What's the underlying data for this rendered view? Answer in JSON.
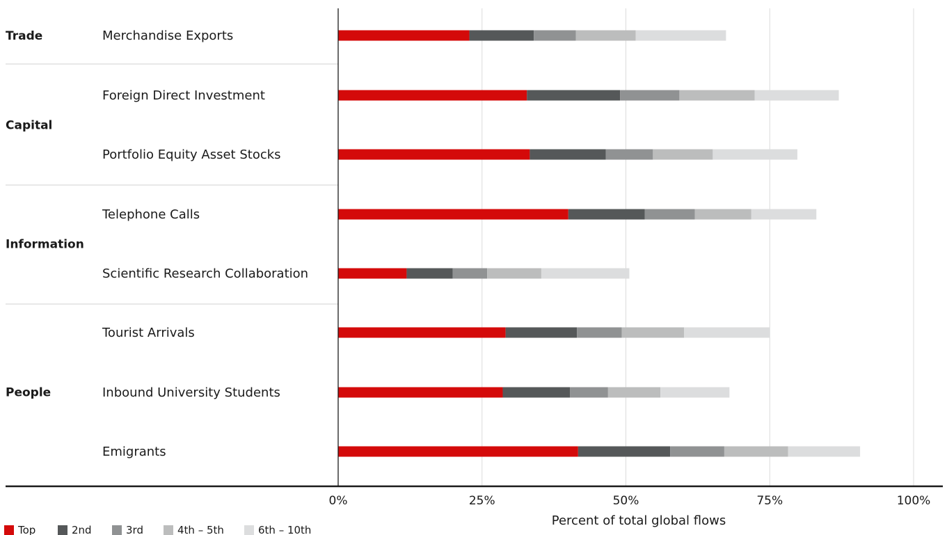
{
  "chart_data": {
    "type": "bar",
    "orientation": "horizontal",
    "stacked": true,
    "xlabel": "Percent of total global flows",
    "xlim": [
      0,
      100
    ],
    "x_ticks": [
      0,
      25,
      50,
      75,
      100
    ],
    "x_tick_labels": [
      "0%",
      "25%",
      "50%",
      "75%",
      "100%"
    ],
    "grid": true,
    "legend_position": "bottom-left",
    "groups": [
      {
        "name": "Trade",
        "categories": [
          "Merchandise Exports"
        ]
      },
      {
        "name": "Capital",
        "categories": [
          "Foreign Direct Investment",
          "Portfolio Equity Asset Stocks"
        ]
      },
      {
        "name": "Information",
        "categories": [
          "Telephone Calls",
          "Scientific Research Collaboration"
        ]
      },
      {
        "name": "People",
        "categories": [
          "Tourist Arrivals",
          "Inbound University Students",
          "Emigrants"
        ]
      }
    ],
    "categories": [
      "Merchandise Exports",
      "Foreign Direct Investment",
      "Portfolio Equity Asset Stocks",
      "Telephone Calls",
      "Scientific Research Collaboration",
      "Tourist Arrivals",
      "Inbound University Students",
      "Emigrants"
    ],
    "series": [
      {
        "name": "Top",
        "color": "#d40a0a",
        "values": [
          22.8,
          32.8,
          33.3,
          40.0,
          11.9,
          29.1,
          28.6,
          41.7
        ]
      },
      {
        "name": "2nd",
        "color": "#555859",
        "values": [
          11.2,
          16.2,
          13.2,
          13.3,
          8.0,
          12.4,
          11.7,
          16.0
        ]
      },
      {
        "name": "3rd",
        "color": "#909293",
        "values": [
          7.3,
          10.3,
          8.2,
          8.7,
          6.0,
          7.8,
          6.6,
          9.4
        ]
      },
      {
        "name": "4th – 5th",
        "color": "#bcbdbd",
        "values": [
          10.4,
          13.1,
          10.4,
          9.8,
          9.4,
          10.8,
          9.1,
          11.1
        ]
      },
      {
        "name": "6th – 10th",
        "color": "#dcddde",
        "values": [
          15.7,
          14.6,
          14.7,
          11.3,
          15.3,
          14.9,
          12.0,
          12.5
        ]
      }
    ]
  }
}
